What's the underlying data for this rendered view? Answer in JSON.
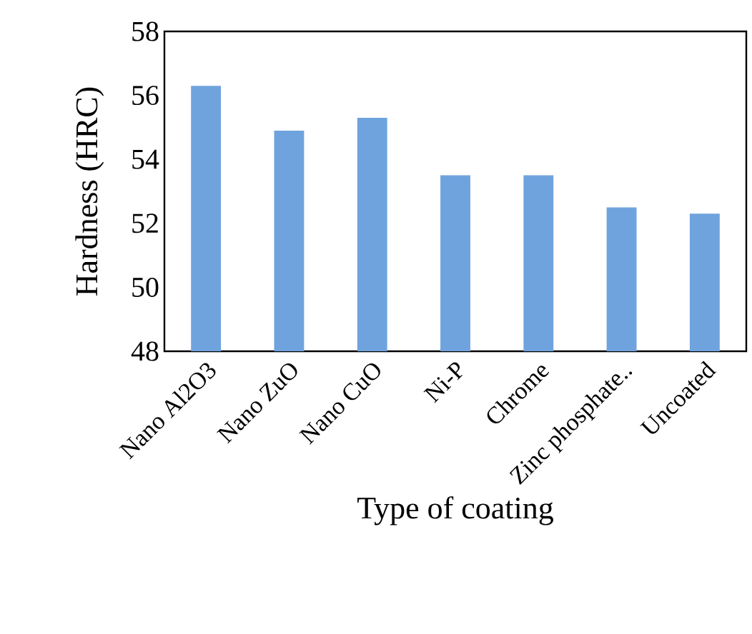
{
  "chart_data": {
    "type": "bar",
    "xlabel": "Type of coating",
    "ylabel": "Hardness  (HRC)",
    "categories": [
      "Nano Al2O3",
      "Nano ZuO",
      "Nano CuO",
      "Ni-P",
      "Chrome",
      "Zinc phosphate..",
      "Uncoated"
    ],
    "values": [
      56.3,
      54.9,
      55.3,
      53.5,
      53.5,
      52.5,
      52.3
    ],
    "color": "#6fa3dd",
    "ylim": [
      48,
      58
    ],
    "yticks": [
      48,
      50,
      52,
      54,
      56,
      58
    ]
  }
}
